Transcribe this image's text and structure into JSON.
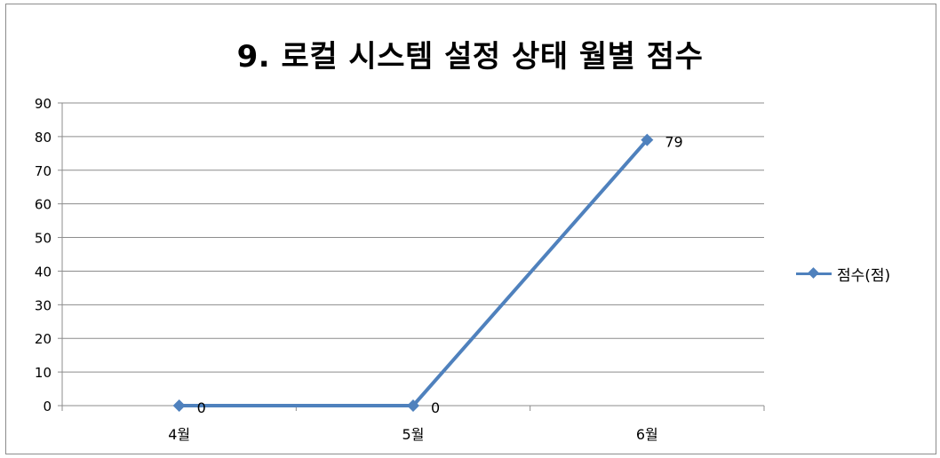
{
  "chart_data": {
    "type": "line",
    "title": "9. 로컬 시스템 설정 상태 월별 점수",
    "categories": [
      "4월",
      "5월",
      "6월"
    ],
    "series": [
      {
        "name": "점수(점)",
        "values": [
          0,
          0,
          79
        ]
      }
    ],
    "data_labels": [
      "0",
      "0",
      "79"
    ],
    "ylim": [
      0,
      90
    ],
    "y_ticks": [
      0,
      10,
      20,
      30,
      40,
      50,
      60,
      70,
      80,
      90
    ],
    "grid": true,
    "legend_position": "right",
    "colors": {
      "series": "#4f81bd",
      "grid": "#8c8c8c",
      "axis": "#8c8c8c"
    }
  }
}
